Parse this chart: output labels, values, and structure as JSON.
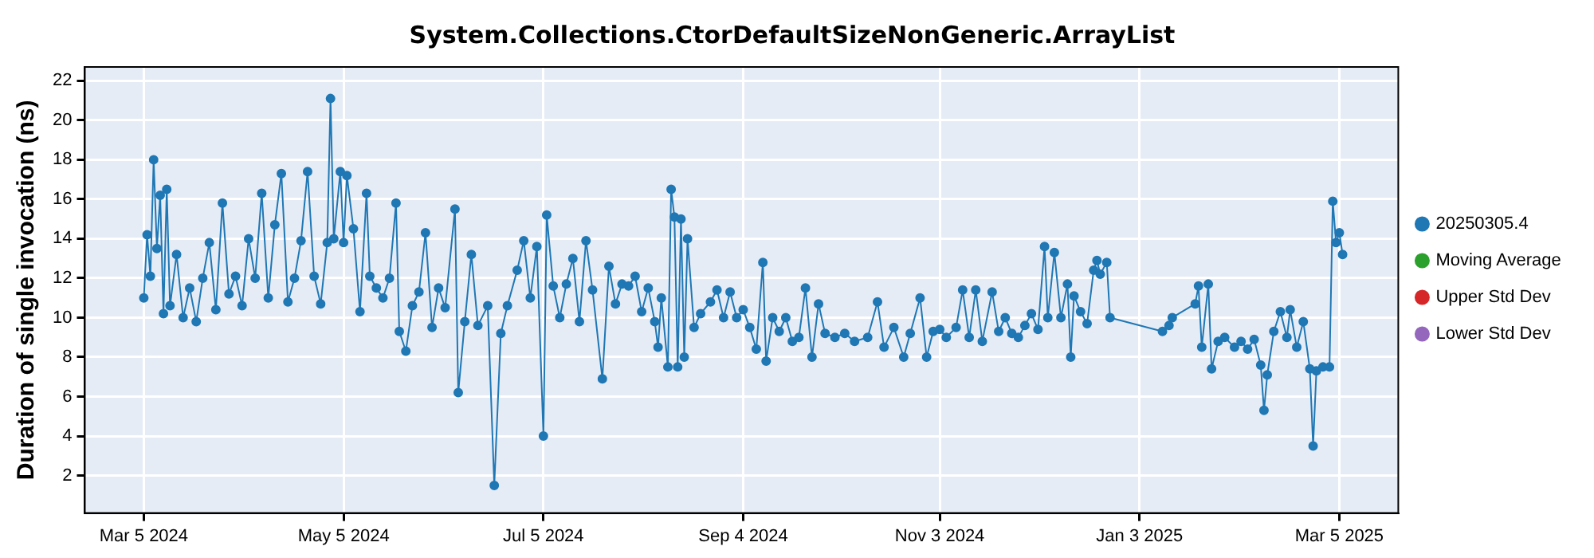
{
  "chart_data": {
    "type": "line",
    "title": "System.Collections.CtorDefaultSizeNonGeneric.ArrayList",
    "ylabel": "Duration of single invocation (ns)",
    "xlim": [
      "2024-02-16",
      "2025-03-23"
    ],
    "xticks": [
      {
        "value": "2024-03-05",
        "label": "Mar 5 2024"
      },
      {
        "value": "2024-05-05",
        "label": "May 5 2024"
      },
      {
        "value": "2024-07-05",
        "label": "Jul 5 2024"
      },
      {
        "value": "2024-09-04",
        "label": "Sep 4 2024"
      },
      {
        "value": "2024-11-03",
        "label": "Nov 3 2024"
      },
      {
        "value": "2025-01-03",
        "label": "Jan 3 2025"
      },
      {
        "value": "2025-03-05",
        "label": "Mar 5 2025"
      }
    ],
    "ylim": [
      0.1,
      22.7
    ],
    "yticks": [
      2,
      4,
      6,
      8,
      10,
      12,
      14,
      16,
      18,
      20,
      22
    ],
    "grid": true,
    "legend": "right",
    "marker": "circle",
    "series": [
      {
        "name": "20250305.4",
        "color": "#1f77b4",
        "x": [
          "2024-03-05",
          "2024-03-06",
          "2024-03-07",
          "2024-03-08",
          "2024-03-09",
          "2024-03-10",
          "2024-03-11",
          "2024-03-12",
          "2024-03-13",
          "2024-03-15",
          "2024-03-17",
          "2024-03-19",
          "2024-03-21",
          "2024-03-23",
          "2024-03-25",
          "2024-03-27",
          "2024-03-29",
          "2024-03-31",
          "2024-04-02",
          "2024-04-04",
          "2024-04-06",
          "2024-04-08",
          "2024-04-10",
          "2024-04-12",
          "2024-04-14",
          "2024-04-16",
          "2024-04-18",
          "2024-04-20",
          "2024-04-22",
          "2024-04-24",
          "2024-04-26",
          "2024-04-28",
          "2024-04-30",
          "2024-05-01",
          "2024-05-02",
          "2024-05-04",
          "2024-05-05",
          "2024-05-06",
          "2024-05-08",
          "2024-05-10",
          "2024-05-12",
          "2024-05-13",
          "2024-05-15",
          "2024-05-17",
          "2024-05-19",
          "2024-05-21",
          "2024-05-22",
          "2024-05-24",
          "2024-05-26",
          "2024-05-28",
          "2024-05-30",
          "2024-06-01",
          "2024-06-03",
          "2024-06-05",
          "2024-06-08",
          "2024-06-09",
          "2024-06-11",
          "2024-06-13",
          "2024-06-15",
          "2024-06-18",
          "2024-06-20",
          "2024-06-22",
          "2024-06-24",
          "2024-06-27",
          "2024-06-29",
          "2024-07-01",
          "2024-07-03",
          "2024-07-05",
          "2024-07-06",
          "2024-07-08",
          "2024-07-10",
          "2024-07-12",
          "2024-07-14",
          "2024-07-16",
          "2024-07-18",
          "2024-07-20",
          "2024-07-23",
          "2024-07-25",
          "2024-07-27",
          "2024-07-29",
          "2024-07-31",
          "2024-08-02",
          "2024-08-04",
          "2024-08-06",
          "2024-08-08",
          "2024-08-09",
          "2024-08-10",
          "2024-08-12",
          "2024-08-13",
          "2024-08-14",
          "2024-08-15",
          "2024-08-16",
          "2024-08-17",
          "2024-08-18",
          "2024-08-20",
          "2024-08-22",
          "2024-08-25",
          "2024-08-27",
          "2024-08-29",
          "2024-08-31",
          "2024-09-02",
          "2024-09-04",
          "2024-09-06",
          "2024-09-08",
          "2024-09-10",
          "2024-09-11",
          "2024-09-13",
          "2024-09-15",
          "2024-09-17",
          "2024-09-19",
          "2024-09-21",
          "2024-09-23",
          "2024-09-25",
          "2024-09-27",
          "2024-09-29",
          "2024-10-02",
          "2024-10-05",
          "2024-10-08",
          "2024-10-12",
          "2024-10-15",
          "2024-10-17",
          "2024-10-20",
          "2024-10-23",
          "2024-10-25",
          "2024-10-28",
          "2024-10-30",
          "2024-11-01",
          "2024-11-03",
          "2024-11-05",
          "2024-11-08",
          "2024-11-10",
          "2024-11-12",
          "2024-11-14",
          "2024-11-16",
          "2024-11-19",
          "2024-11-21",
          "2024-11-23",
          "2024-11-25",
          "2024-11-27",
          "2024-11-29",
          "2024-12-01",
          "2024-12-03",
          "2024-12-05",
          "2024-12-06",
          "2024-12-08",
          "2024-12-10",
          "2024-12-12",
          "2024-12-13",
          "2024-12-14",
          "2024-12-16",
          "2024-12-18",
          "2024-12-20",
          "2024-12-21",
          "2024-12-22",
          "2024-12-24",
          "2024-12-25",
          "2025-01-10",
          "2025-01-12",
          "2025-01-13",
          "2025-01-20",
          "2025-01-21",
          "2025-01-22",
          "2025-01-24",
          "2025-01-25",
          "2025-01-27",
          "2025-01-29",
          "2025-02-01",
          "2025-02-03",
          "2025-02-05",
          "2025-02-07",
          "2025-02-09",
          "2025-02-10",
          "2025-02-11",
          "2025-02-13",
          "2025-02-15",
          "2025-02-17",
          "2025-02-18",
          "2025-02-20",
          "2025-02-22",
          "2025-02-24",
          "2025-02-25",
          "2025-02-26",
          "2025-02-28",
          "2025-03-02",
          "2025-03-03",
          "2025-03-04",
          "2025-03-05",
          "2025-03-06"
        ],
        "values": [
          11.0,
          14.2,
          12.1,
          18.0,
          13.5,
          16.2,
          10.2,
          16.5,
          10.6,
          13.2,
          10.0,
          11.5,
          9.8,
          12.0,
          13.8,
          10.4,
          15.8,
          11.2,
          12.1,
          10.6,
          14.0,
          12.0,
          16.3,
          11.0,
          14.7,
          17.3,
          10.8,
          12.0,
          13.9,
          17.4,
          12.1,
          10.7,
          13.8,
          21.1,
          14.0,
          17.4,
          13.8,
          17.2,
          14.5,
          10.3,
          16.3,
          12.1,
          11.5,
          11.0,
          12.0,
          15.8,
          9.3,
          8.3,
          10.6,
          11.3,
          14.3,
          9.5,
          11.5,
          10.5,
          15.5,
          6.2,
          9.8,
          13.2,
          9.6,
          10.6,
          1.5,
          9.2,
          10.6,
          12.4,
          13.9,
          11.0,
          13.6,
          4.0,
          15.2,
          11.6,
          10.0,
          11.7,
          13.0,
          9.8,
          13.9,
          11.4,
          6.9,
          12.6,
          10.7,
          11.7,
          11.6,
          12.1,
          10.3,
          11.5,
          9.8,
          8.5,
          11.0,
          7.5,
          16.5,
          15.1,
          7.5,
          15.0,
          8.0,
          14.0,
          9.5,
          10.2,
          10.8,
          11.4,
          10.0,
          11.3,
          10.0,
          10.4,
          9.5,
          8.4,
          12.8,
          7.8,
          10.0,
          9.3,
          10.0,
          8.8,
          9.0,
          11.5,
          8.0,
          10.7,
          9.2,
          9.0,
          9.2,
          8.8,
          9.0,
          10.8,
          8.5,
          9.5,
          8.0,
          9.2,
          11.0,
          8.0,
          9.3,
          9.4,
          9.0,
          9.5,
          11.4,
          9.0,
          11.4,
          8.8,
          11.3,
          9.3,
          10.0,
          9.2,
          9.0,
          9.6,
          10.2,
          9.4,
          13.6,
          10.0,
          13.3,
          10.0,
          11.7,
          8.0,
          11.1,
          10.3,
          9.7,
          12.4,
          12.9,
          12.2,
          12.8,
          10.0,
          9.3,
          9.6,
          10.0,
          10.7,
          11.6,
          8.5,
          11.7,
          7.4,
          8.8,
          9.0,
          8.5,
          8.8,
          8.4,
          8.9,
          7.6,
          5.3,
          7.1,
          9.3,
          10.3,
          9.0,
          10.4,
          8.5,
          9.8,
          7.4,
          3.5,
          7.3,
          7.5,
          7.5,
          15.9,
          13.8,
          14.3,
          13.2
        ]
      },
      {
        "name": "Moving Average",
        "color": "#2ca02c"
      },
      {
        "name": "Upper Std Dev",
        "color": "#d62728"
      },
      {
        "name": "Lower Std Dev",
        "color": "#9467bd"
      }
    ]
  }
}
